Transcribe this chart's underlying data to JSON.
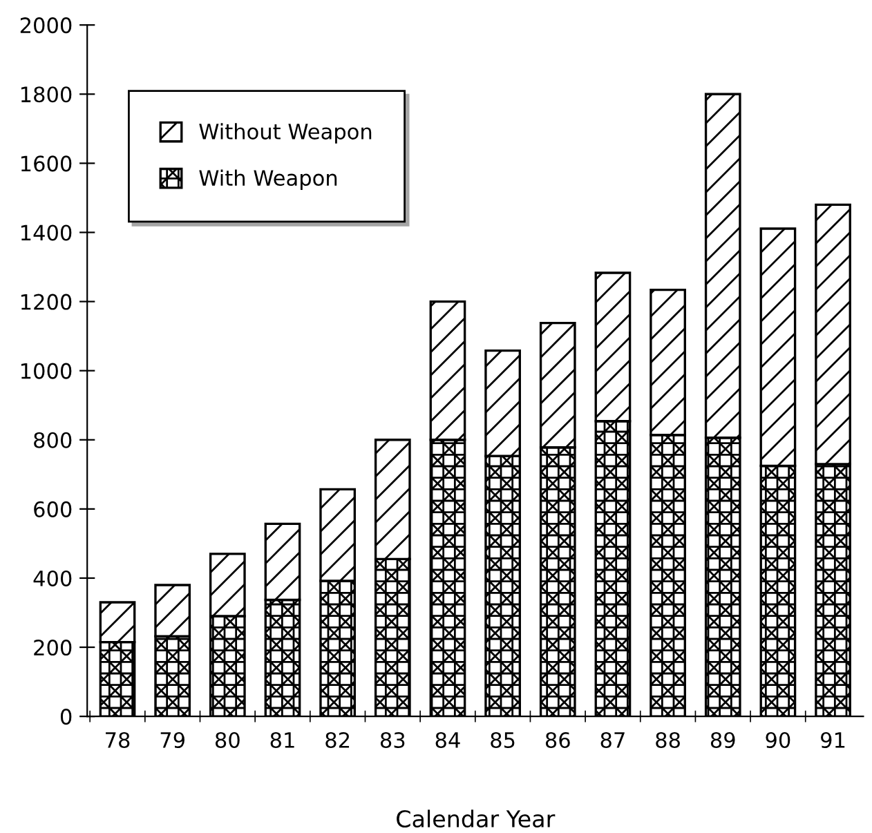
{
  "chart_data": {
    "type": "bar",
    "stacked": true,
    "xlabel": "Calendar Year",
    "categories": [
      "78",
      "79",
      "80",
      "81",
      "82",
      "83",
      "84",
      "85",
      "86",
      "87",
      "88",
      "89",
      "90",
      "91"
    ],
    "series": [
      {
        "name": "With Weapon",
        "color": "#000000",
        "values": [
          215,
          232,
          290,
          337,
          392,
          455,
          800,
          753,
          778,
          854,
          814,
          806,
          725,
          730
        ]
      },
      {
        "name": "Without Weapon",
        "color": "#000000",
        "values": [
          115,
          148,
          180,
          220,
          265,
          345,
          400,
          305,
          360,
          429,
          420,
          994,
          686,
          750
        ]
      }
    ],
    "ylim": [
      0,
      2000
    ],
    "yticks": [
      0,
      200,
      400,
      600,
      800,
      1000,
      1200,
      1400,
      1600,
      1800,
      2000
    ],
    "grid": false,
    "legend": "top left"
  }
}
